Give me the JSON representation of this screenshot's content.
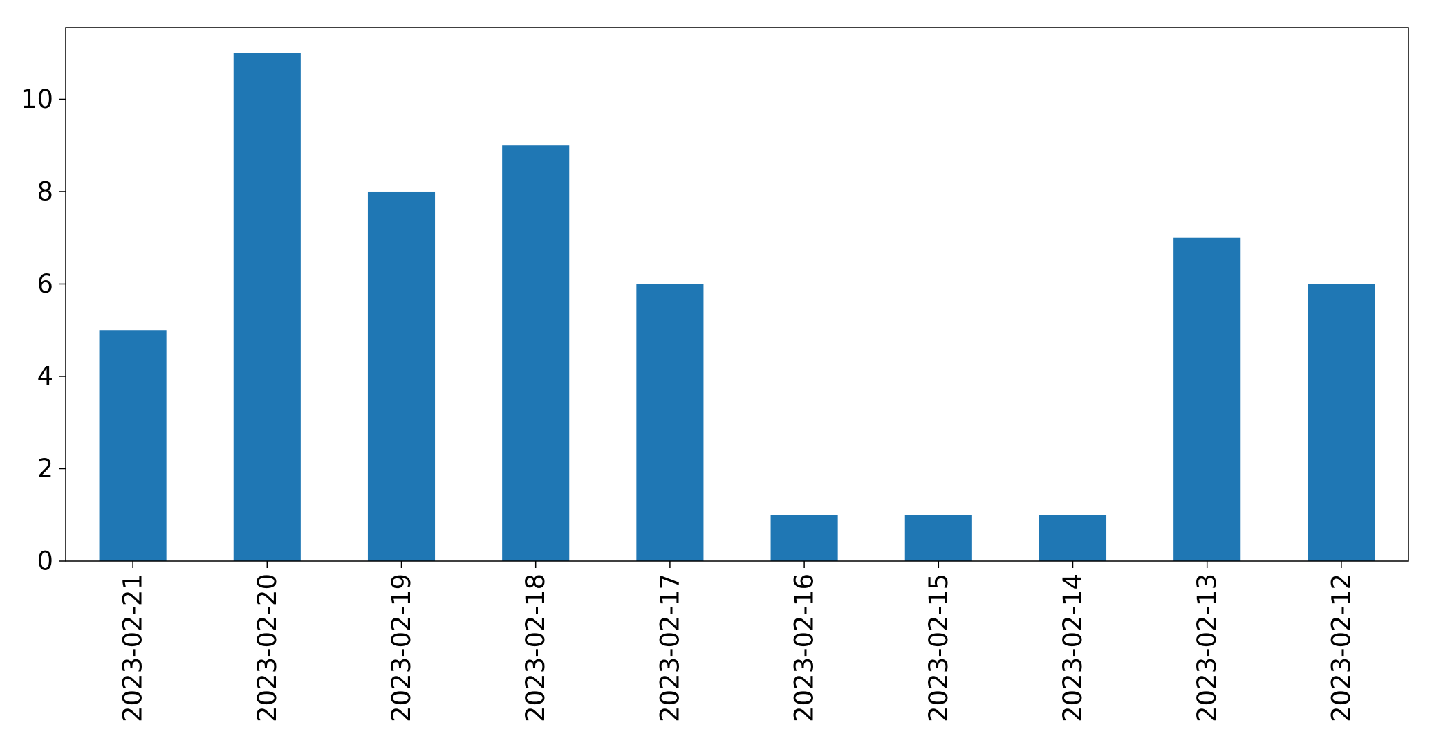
{
  "chart_data": {
    "type": "bar",
    "title": "",
    "xlabel": "",
    "ylabel": "",
    "categories": [
      "2023-02-21",
      "2023-02-20",
      "2023-02-19",
      "2023-02-18",
      "2023-02-17",
      "2023-02-16",
      "2023-02-15",
      "2023-02-14",
      "2023-02-13",
      "2023-02-12"
    ],
    "values": [
      5,
      11,
      8,
      9,
      6,
      1,
      1,
      1,
      7,
      6
    ],
    "ylim": [
      0,
      11.55
    ],
    "yticks": [
      0,
      2,
      4,
      6,
      8,
      10
    ],
    "bar_color": "#1f77b4",
    "grid": false,
    "legend": "none"
  }
}
